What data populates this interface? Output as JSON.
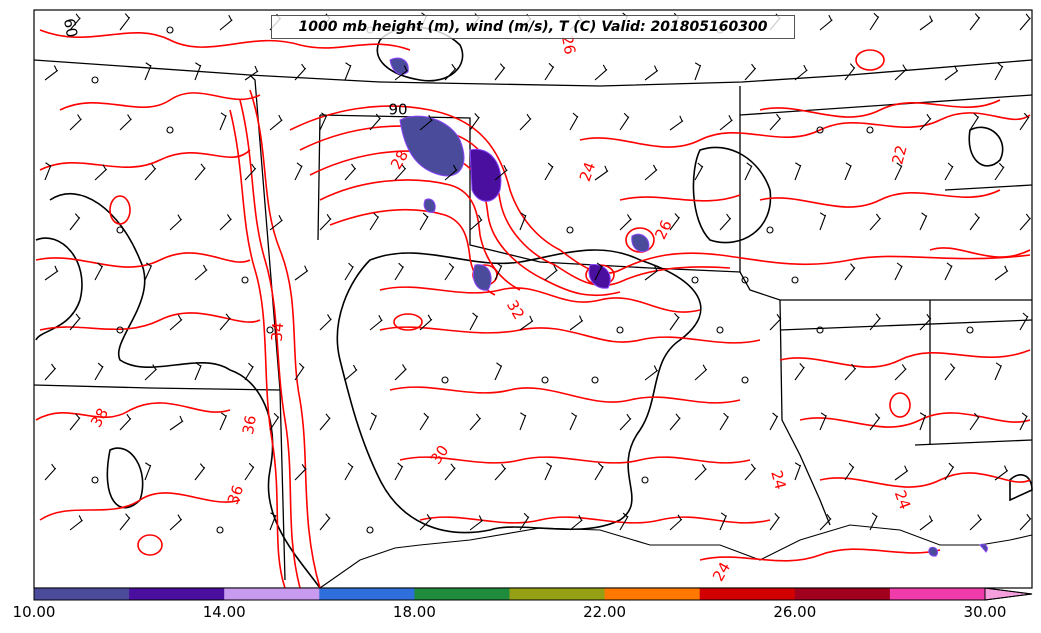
{
  "title": "1000 mb height (m), wind (m/s), T (C) Valid: 201805160300",
  "colorbar": {
    "ticks": [
      "10.00",
      "14.00",
      "18.00",
      "22.00",
      "26.00",
      "30.00"
    ],
    "colors": [
      "#4b4b9c",
      "#4b0fa0",
      "#c89bf0",
      "#2f6fdc",
      "#1e8c3c",
      "#96a014",
      "#ff7800",
      "#d20000",
      "#a0001e",
      "#f03caa",
      "#f5a0dc"
    ],
    "min": 10,
    "max": 30
  },
  "contour_labels": {
    "temp": [
      {
        "text": "26",
        "angle": 80
      },
      {
        "text": "22",
        "angle": -75
      },
      {
        "text": "24",
        "angle": -70
      },
      {
        "text": "26",
        "angle": -65
      },
      {
        "text": "28",
        "angle": -60
      },
      {
        "text": "32",
        "angle": 60
      },
      {
        "text": "34",
        "angle": -85
      },
      {
        "text": "36",
        "angle": -80
      },
      {
        "text": "38",
        "angle": -60
      },
      {
        "text": "30",
        "angle": -55
      },
      {
        "text": "36",
        "angle": -70
      },
      {
        "text": "24",
        "angle": 75
      },
      {
        "text": "24",
        "angle": 70
      },
      {
        "text": "24",
        "angle": -60
      }
    ],
    "height": [
      {
        "text": "90",
        "angle": 0
      },
      {
        "text": "60",
        "angle": 80
      }
    ]
  },
  "colors": {
    "temperature_contour": "#ff0000",
    "height_contour": "#000000",
    "boundaries": "#000000",
    "wind_barb": "#000000",
    "shading_outline": "#8c46ff"
  }
}
